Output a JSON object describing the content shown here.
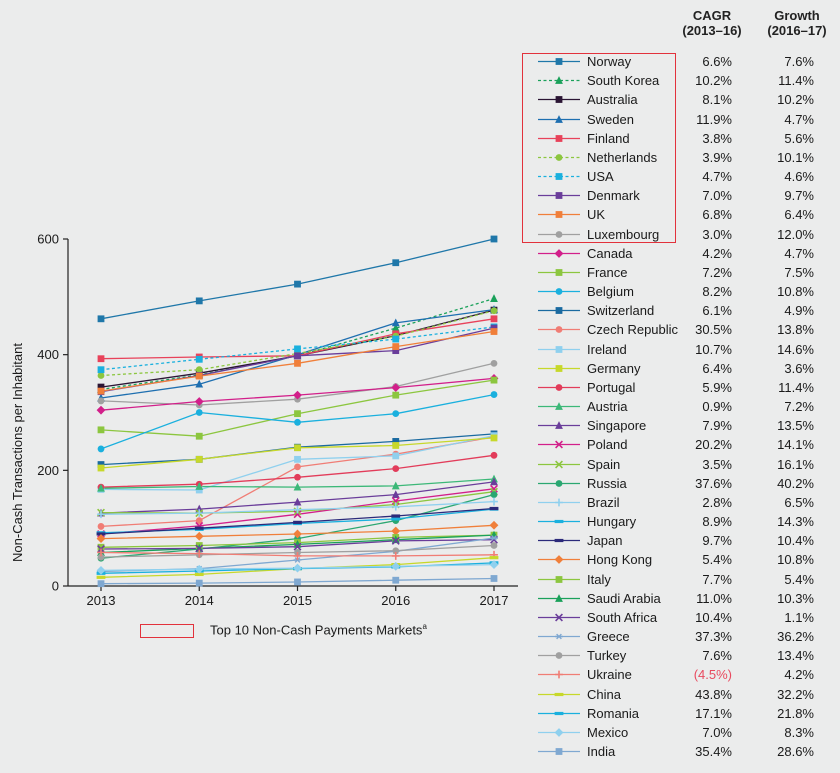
{
  "header": {
    "cagr_label": "CAGR",
    "cagr_period": "(2013–16)",
    "growth_label": "Growth",
    "growth_period": "(2016–17)"
  },
  "bottom_legend": {
    "label": "Top 10 Non-Cash Payments Markets",
    "superscript": "a"
  },
  "chart_data": {
    "type": "line",
    "title": "",
    "xlabel": "",
    "ylabel": "Non-Cash Transactions per Inhabitant",
    "x": [
      "2013",
      "2014",
      "2015",
      "2016",
      "2017"
    ],
    "ylim": [
      0,
      640
    ],
    "yticks": [
      "0",
      "200",
      "400",
      "600"
    ],
    "series": [
      {
        "name": "Norway",
        "color": "#1f77a9",
        "marker": "square",
        "dashed": false,
        "top10": true,
        "cagr": "6.6%",
        "growth": "7.6%",
        "values": [
          462,
          493,
          522,
          559,
          600
        ]
      },
      {
        "name": "South Korea",
        "color": "#1aa15a",
        "marker": "triangle",
        "dashed": true,
        "top10": true,
        "cagr": "10.2%",
        "growth": "11.4%",
        "values": [
          340,
          365,
          398,
          446,
          497
        ]
      },
      {
        "name": "Australia",
        "color": "#2b1534",
        "marker": "square",
        "dashed": false,
        "top10": true,
        "cagr": "8.1%",
        "growth": "10.2%",
        "values": [
          344,
          368,
          398,
          433,
          477
        ]
      },
      {
        "name": "Sweden",
        "color": "#1e6fb0",
        "marker": "triangle",
        "dashed": false,
        "top10": true,
        "cagr": "11.9%",
        "growth": "4.7%",
        "values": [
          325,
          349,
          400,
          455,
          478
        ]
      },
      {
        "name": "Finland",
        "color": "#e8425a",
        "marker": "square",
        "dashed": false,
        "top10": true,
        "cagr": "3.8%",
        "growth": "5.6%",
        "values": [
          393,
          396,
          398,
          436,
          462
        ]
      },
      {
        "name": "Netherlands",
        "color": "#8cc63f",
        "marker": "circle",
        "dashed": true,
        "top10": true,
        "cagr": "3.9%",
        "growth": "10.1%",
        "values": [
          364,
          374,
          402,
          432,
          476
        ]
      },
      {
        "name": "USA",
        "color": "#1ab0de",
        "marker": "square",
        "dashed": true,
        "top10": true,
        "cagr": "4.7%",
        "growth": "4.6%",
        "values": [
          374,
          392,
          410,
          427,
          448
        ]
      },
      {
        "name": "Denmark",
        "color": "#6a3d9a",
        "marker": "square",
        "dashed": false,
        "top10": true,
        "cagr": "7.0%",
        "growth": "9.7%",
        "values": [
          336,
          364,
          398,
          407,
          446
        ]
      },
      {
        "name": "UK",
        "color": "#f07f3a",
        "marker": "square",
        "dashed": false,
        "top10": true,
        "cagr": "6.8%",
        "growth": "6.4%",
        "values": [
          337,
          363,
          385,
          414,
          440
        ]
      },
      {
        "name": "Luxembourg",
        "color": "#a0a0a0",
        "marker": "circle",
        "dashed": false,
        "top10": true,
        "cagr": "3.0%",
        "growth": "12.0%",
        "values": [
          320,
          313,
          323,
          345,
          385
        ]
      },
      {
        "name": "Canada",
        "color": "#d21f8a",
        "marker": "diamond",
        "dashed": false,
        "top10": false,
        "cagr": "4.2%",
        "growth": "4.7%",
        "values": [
          304,
          319,
          330,
          343,
          359
        ]
      },
      {
        "name": "France",
        "color": "#8cc63f",
        "marker": "square",
        "dashed": false,
        "top10": false,
        "cagr": "7.2%",
        "growth": "7.5%",
        "values": [
          270,
          259,
          298,
          330,
          356
        ]
      },
      {
        "name": "Belgium",
        "color": "#1ab0de",
        "marker": "circle",
        "dashed": false,
        "top10": false,
        "cagr": "8.2%",
        "growth": "10.8%",
        "values": [
          237,
          300,
          283,
          298,
          331
        ]
      },
      {
        "name": "Switzerland",
        "color": "#1a6aa0",
        "marker": "square",
        "dashed": false,
        "top10": false,
        "cagr": "6.1%",
        "growth": "4.9%",
        "values": [
          210,
          219,
          240,
          250,
          263
        ]
      },
      {
        "name": "Czech Republic",
        "color": "#f07d75",
        "marker": "circle",
        "dashed": false,
        "top10": false,
        "cagr": "30.5%",
        "growth": "13.8%",
        "values": [
          103,
          113,
          206,
          228,
          258
        ]
      },
      {
        "name": "Ireland",
        "color": "#8fd0ee",
        "marker": "square",
        "dashed": false,
        "top10": false,
        "cagr": "10.7%",
        "growth": "14.6%",
        "values": [
          167,
          166,
          219,
          225,
          260
        ]
      },
      {
        "name": "Germany",
        "color": "#c7d82b",
        "marker": "square",
        "dashed": false,
        "top10": false,
        "cagr": "6.4%",
        "growth": "3.6%",
        "values": [
          204,
          219,
          239,
          243,
          256
        ]
      },
      {
        "name": "Portugal",
        "color": "#e23c5a",
        "marker": "circle",
        "dashed": false,
        "top10": false,
        "cagr": "5.9%",
        "growth": "11.4%",
        "values": [
          171,
          176,
          188,
          203,
          226
        ]
      },
      {
        "name": "Austria",
        "color": "#3cb878",
        "marker": "triangle",
        "dashed": false,
        "top10": false,
        "cagr": "0.9%",
        "growth": "7.2%",
        "values": [
          169,
          172,
          171,
          173,
          185
        ]
      },
      {
        "name": "Singapore",
        "color": "#6a3d9a",
        "marker": "triangle",
        "dashed": false,
        "top10": false,
        "cagr": "7.9%",
        "growth": "13.5%",
        "values": [
          126,
          133,
          145,
          158,
          180
        ]
      },
      {
        "name": "Poland",
        "color": "#d21f8a",
        "marker": "x",
        "dashed": false,
        "top10": false,
        "cagr": "20.2%",
        "growth": "14.1%",
        "values": [
          90,
          104,
          124,
          147,
          168
        ]
      },
      {
        "name": "Spain",
        "color": "#8cc63f",
        "marker": "x",
        "dashed": false,
        "top10": false,
        "cagr": "3.5%",
        "growth": "16.1%",
        "values": [
          127,
          126,
          129,
          141,
          163
        ]
      },
      {
        "name": "Russia",
        "color": "#2aa771",
        "marker": "circle",
        "dashed": false,
        "top10": false,
        "cagr": "37.6%",
        "growth": "40.2%",
        "values": [
          48,
          64,
          82,
          113,
          158
        ]
      },
      {
        "name": "Brazil",
        "color": "#8fd0ee",
        "marker": "plus",
        "dashed": false,
        "top10": false,
        "cagr": "2.8%",
        "growth": "6.5%",
        "values": [
          124,
          126,
          132,
          137,
          146
        ]
      },
      {
        "name": "Hungary",
        "color": "#1ab0de",
        "marker": "dash",
        "dashed": false,
        "top10": false,
        "cagr": "8.9%",
        "growth": "14.3%",
        "values": [
          92,
          98,
          108,
          116,
          133
        ]
      },
      {
        "name": "Japan",
        "color": "#2b2a7a",
        "marker": "dash",
        "dashed": false,
        "top10": false,
        "cagr": "9.7%",
        "growth": "10.4%",
        "values": [
          90,
          100,
          110,
          121,
          134
        ]
      },
      {
        "name": "Hong Kong",
        "color": "#f07f3a",
        "marker": "diamond",
        "dashed": false,
        "top10": false,
        "cagr": "5.4%",
        "growth": "10.8%",
        "values": [
          82,
          86,
          90,
          95,
          105
        ]
      },
      {
        "name": "Italy",
        "color": "#8cc63f",
        "marker": "square",
        "dashed": false,
        "top10": false,
        "cagr": "7.7%",
        "growth": "5.4%",
        "values": [
          67,
          70,
          75,
          84,
          88
        ]
      },
      {
        "name": "Saudi Arabia",
        "color": "#1aa15a",
        "marker": "triangle",
        "dashed": false,
        "top10": false,
        "cagr": "11.0%",
        "growth": "10.3%",
        "values": [
          58,
          65,
          72,
          80,
          88
        ]
      },
      {
        "name": "South Africa",
        "color": "#6a3d9a",
        "marker": "x",
        "dashed": false,
        "top10": false,
        "cagr": "10.4%",
        "growth": "1.1%",
        "values": [
          64,
          65,
          68,
          78,
          80
        ]
      },
      {
        "name": "Greece",
        "color": "#7fa8d1",
        "marker": "star",
        "dashed": false,
        "top10": false,
        "cagr": "37.3%",
        "growth": "36.2%",
        "values": [
          25,
          30,
          45,
          60,
          83
        ]
      },
      {
        "name": "Turkey",
        "color": "#a0a0a0",
        "marker": "circle",
        "dashed": false,
        "top10": false,
        "cagr": "7.6%",
        "growth": "13.4%",
        "values": [
          50,
          54,
          58,
          61,
          70
        ]
      },
      {
        "name": "Ukraine",
        "color": "#f07d75",
        "marker": "plus",
        "dashed": false,
        "top10": false,
        "cagr": "(4.5%)",
        "growth": "4.2%",
        "values": [
          58,
          56,
          52,
          52,
          54
        ]
      },
      {
        "name": "China",
        "color": "#c7d82b",
        "marker": "dash",
        "dashed": false,
        "top10": false,
        "cagr": "43.8%",
        "growth": "32.2%",
        "values": [
          15,
          20,
          30,
          37,
          49
        ]
      },
      {
        "name": "Romania",
        "color": "#1ab0de",
        "marker": "dash",
        "dashed": false,
        "top10": false,
        "cagr": "17.1%",
        "growth": "21.8%",
        "values": [
          22,
          26,
          30,
          33,
          40
        ]
      },
      {
        "name": "Mexico",
        "color": "#8fd0ee",
        "marker": "diamond",
        "dashed": false,
        "top10": false,
        "cagr": "7.0%",
        "growth": "8.3%",
        "values": [
          27,
          29,
          31,
          34,
          37
        ]
      },
      {
        "name": "India",
        "color": "#7fa8d1",
        "marker": "square",
        "dashed": false,
        "top10": false,
        "cagr": "35.4%",
        "growth": "28.6%",
        "values": [
          4,
          5,
          7,
          10,
          13
        ]
      }
    ]
  }
}
